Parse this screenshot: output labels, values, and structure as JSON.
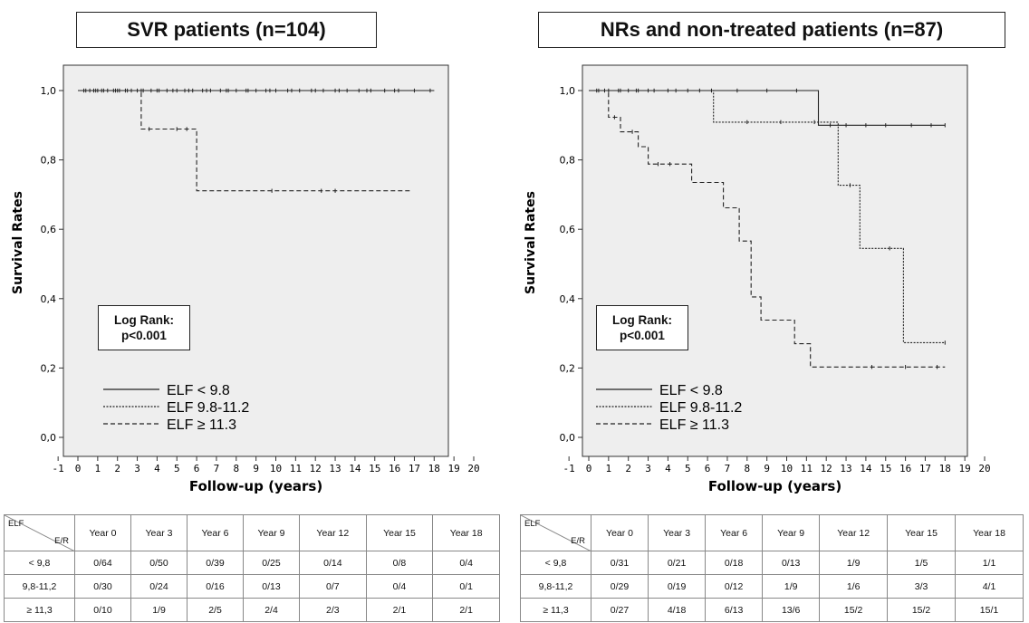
{
  "panels": [
    {
      "title": "SVR patients (n=104)",
      "log_rank_line1": "Log Rank:",
      "log_rank_line2": "p<0.001",
      "legend": [
        "ELF < 9.8",
        "ELF 9.8-11.2",
        "ELF ≥ 11.3"
      ],
      "table": {
        "corner_top": "ELF",
        "corner_bottom": "E/R",
        "columns": [
          "Year 0",
          "Year 3",
          "Year 6",
          "Year 9",
          "Year 12",
          "Year 15",
          "Year 18"
        ],
        "rows": [
          {
            "label": "< 9,8",
            "cells": [
              "0/64",
              "0/50",
              "0/39",
              "0/25",
              "0/14",
              "0/8",
              "0/4"
            ]
          },
          {
            "label": "9,8-11,2",
            "cells": [
              "0/30",
              "0/24",
              "0/16",
              "0/13",
              "0/7",
              "0/4",
              "0/1"
            ]
          },
          {
            "label": "≥ 11,3",
            "cells": [
              "0/10",
              "1/9",
              "2/5",
              "2/4",
              "2/3",
              "2/1",
              "2/1"
            ]
          }
        ]
      }
    },
    {
      "title": "NRs and non-treated patients (n=87)",
      "log_rank_line1": "Log Rank:",
      "log_rank_line2": "p<0.001",
      "legend": [
        "ELF < 9.8",
        "ELF 9.8-11.2",
        "ELF ≥ 11.3"
      ],
      "table": {
        "corner_top": "ELF",
        "corner_bottom": "E/R",
        "columns": [
          "Year 0",
          "Year 3",
          "Year 6",
          "Year 9",
          "Year 12",
          "Year 15",
          "Year 18"
        ],
        "rows": [
          {
            "label": "< 9,8",
            "cells": [
              "0/31",
              "0/21",
              "0/18",
              "0/13",
              "1/9",
              "1/5",
              "1/1"
            ]
          },
          {
            "label": "9,8-11,2",
            "cells": [
              "0/29",
              "0/19",
              "0/12",
              "1/9",
              "1/6",
              "3/3",
              "4/1"
            ]
          },
          {
            "label": "≥ 11,3",
            "cells": [
              "0/27",
              "4/18",
              "6/13",
              "13/6",
              "15/2",
              "15/2",
              "15/1"
            ]
          }
        ]
      }
    }
  ],
  "chart_data": [
    {
      "type": "line",
      "subtype": "kaplan-meier step",
      "title": "SVR patients (n=104)",
      "xlabel": "Follow-up (years)",
      "ylabel": "Survival Rates",
      "xlim": [
        -1,
        20
      ],
      "ylim": [
        0,
        1
      ],
      "x_ticks": [
        "-1",
        "0",
        "1",
        "2",
        "3",
        "4",
        "5",
        "6",
        "7",
        "8",
        "9",
        "10",
        "11",
        "12",
        "13",
        "14",
        "15",
        "16",
        "17",
        "18",
        "19",
        "20"
      ],
      "y_ticks": [
        "0,0",
        "0,2",
        "0,4",
        "0,6",
        "0,8",
        "1,0"
      ],
      "legend_placement": "bottom-left",
      "plot_background": "#eeeeee",
      "series": [
        {
          "name": "ELF < 9.8",
          "style": "solid",
          "steps": [
            [
              0,
              1.0
            ],
            [
              18,
              1.0
            ]
          ],
          "censored": [
            0.3,
            0.6,
            0.9,
            1.2,
            1.5,
            1.8,
            2.1,
            2.4,
            2.7,
            3.0,
            3.3,
            3.7,
            4.1,
            4.5,
            5.0,
            5.4,
            5.8,
            6.3,
            6.7,
            7.2,
            7.6,
            8.0,
            8.5,
            9.0,
            9.5,
            10.0,
            10.6,
            11.2,
            11.8,
            12.4,
            13.0,
            13.6,
            14.2,
            14.8,
            15.5,
            16.2,
            17.0,
            17.8
          ]
        },
        {
          "name": "ELF 9.8-11.2",
          "style": "dotted",
          "steps": [
            [
              0,
              1.0
            ],
            [
              18,
              1.0
            ]
          ],
          "censored": [
            0.4,
            0.8,
            1.3,
            1.9,
            2.5,
            3.2,
            4.0,
            4.8,
            5.6,
            6.5,
            7.5,
            8.6,
            9.7,
            10.8,
            12.0,
            13.2,
            14.6,
            16.0
          ]
        },
        {
          "name": "ELF ≥ 11.3",
          "style": "dashed",
          "steps": [
            [
              0,
              1.0
            ],
            [
              3.2,
              1.0
            ],
            [
              3.2,
              0.889
            ],
            [
              6.0,
              0.889
            ],
            [
              6.0,
              0.711
            ],
            [
              16.8,
              0.711
            ]
          ],
          "censored": [
            1.0,
            2.0,
            3.6,
            5.0,
            5.5,
            9.8,
            12.3,
            13.0
          ]
        }
      ]
    },
    {
      "type": "line",
      "subtype": "kaplan-meier step",
      "title": "NRs and non-treated patients (n=87)",
      "xlabel": "Follow-up (years)",
      "ylabel": "Survival Rates",
      "xlim": [
        -1,
        20
      ],
      "ylim": [
        0,
        1
      ],
      "x_ticks": [
        "-1",
        "0",
        "1",
        "2",
        "3",
        "4",
        "5",
        "6",
        "7",
        "8",
        "9",
        "10",
        "11",
        "12",
        "13",
        "14",
        "15",
        "16",
        "17",
        "18",
        "19",
        "20"
      ],
      "y_ticks": [
        "0,0",
        "0,2",
        "0,4",
        "0,6",
        "0,8",
        "1,0"
      ],
      "legend_placement": "bottom-left",
      "plot_background": "#eeeeee",
      "series": [
        {
          "name": "ELF < 9.8",
          "style": "solid",
          "steps": [
            [
              0,
              1.0
            ],
            [
              11.6,
              1.0
            ],
            [
              11.6,
              0.9
            ],
            [
              18,
              0.9
            ]
          ],
          "censored": [
            0.5,
            1.0,
            1.5,
            2.0,
            2.5,
            3.0,
            4.0,
            5.0,
            6.2,
            7.5,
            9.0,
            10.5,
            12.2,
            13.0,
            14.0,
            15.0,
            16.3,
            17.3,
            18.0
          ]
        },
        {
          "name": "ELF 9.8-11.2",
          "style": "dotted",
          "steps": [
            [
              0,
              1.0
            ],
            [
              6.3,
              1.0
            ],
            [
              6.3,
              0.909
            ],
            [
              12.6,
              0.909
            ],
            [
              12.6,
              0.727
            ],
            [
              13.7,
              0.727
            ],
            [
              13.7,
              0.545
            ],
            [
              15.9,
              0.545
            ],
            [
              15.9,
              0.273
            ],
            [
              18,
              0.273
            ]
          ],
          "censored": [
            0.8,
            1.6,
            2.4,
            3.3,
            4.4,
            5.6,
            8.0,
            9.7,
            11.4,
            13.2,
            15.2,
            18.0
          ]
        },
        {
          "name": "ELF ≥ 11.3",
          "style": "dashed",
          "steps": [
            [
              0,
              1.0
            ],
            [
              1.0,
              1.0
            ],
            [
              1.0,
              0.923
            ],
            [
              1.6,
              0.923
            ],
            [
              1.6,
              0.881
            ],
            [
              2.5,
              0.881
            ],
            [
              2.5,
              0.838
            ],
            [
              3.0,
              0.838
            ],
            [
              3.0,
              0.788
            ],
            [
              5.2,
              0.788
            ],
            [
              5.2,
              0.735
            ],
            [
              6.8,
              0.735
            ],
            [
              6.8,
              0.662
            ],
            [
              7.6,
              0.662
            ],
            [
              7.6,
              0.566
            ],
            [
              8.2,
              0.566
            ],
            [
              8.2,
              0.405
            ],
            [
              8.7,
              0.405
            ],
            [
              8.7,
              0.338
            ],
            [
              10.4,
              0.338
            ],
            [
              10.4,
              0.27
            ],
            [
              11.2,
              0.27
            ],
            [
              11.2,
              0.203
            ],
            [
              18,
              0.203
            ]
          ],
          "censored": [
            0.4,
            1.3,
            2.2,
            3.5,
            4.1,
            14.3,
            16.0,
            17.6
          ]
        }
      ]
    }
  ]
}
